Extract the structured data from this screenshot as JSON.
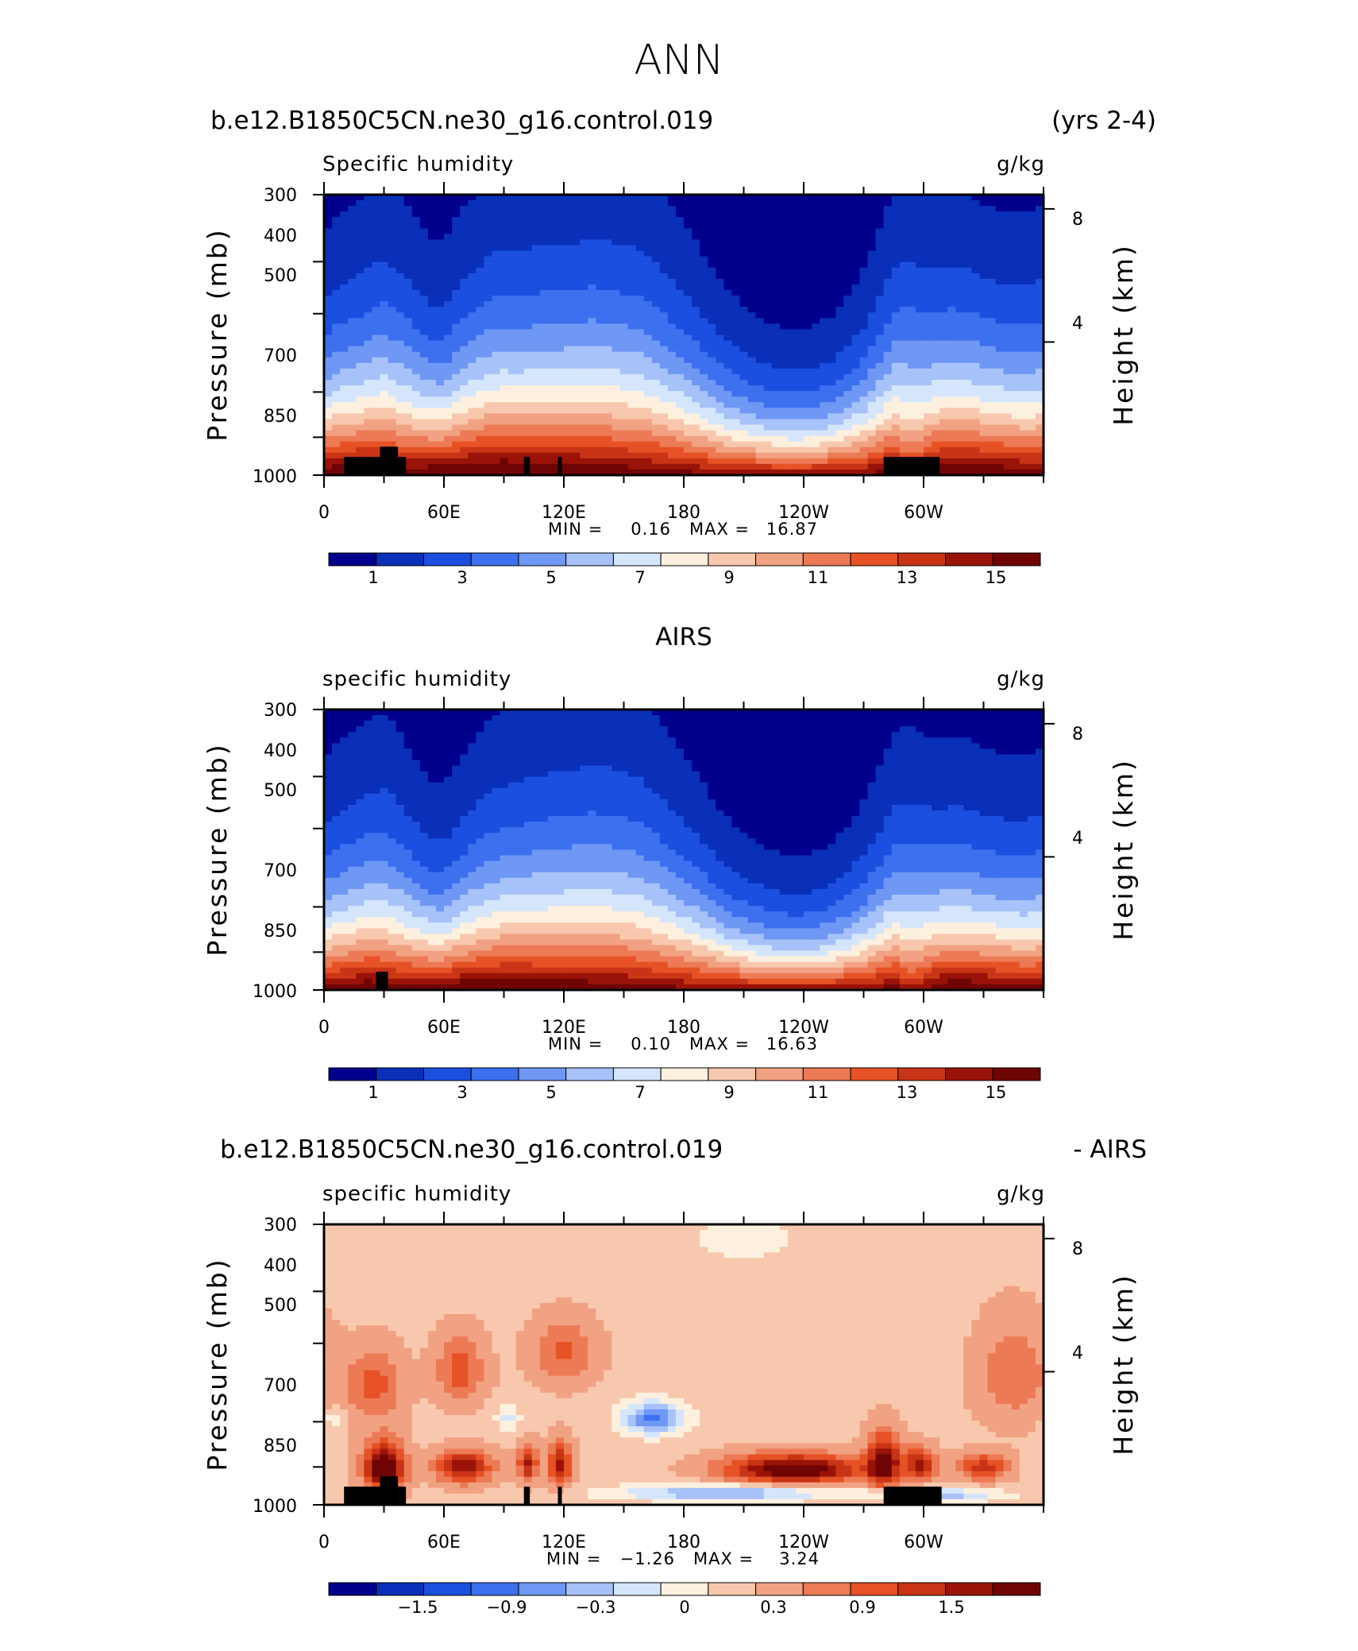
{
  "page_title": "ANN",
  "chart_data": [
    {
      "type": "heatmap",
      "header_left": "b.e12.B1850C5CN.ne30_g16.control.019",
      "header_right": "(yrs 2-4)",
      "variable": "Specific humidity",
      "units": "g/kg",
      "ylabel": "Pressure (mb)",
      "ylabel_right": "Height (km)",
      "y_ticks": [
        "300",
        "400",
        "500",
        "700",
        "850",
        "1000"
      ],
      "y_right_ticks": [
        "8",
        "4"
      ],
      "x_ticks": [
        "0",
        "60E",
        "120E",
        "180",
        "120W",
        "60W"
      ],
      "min_label": "MIN =",
      "min_value": "0.16",
      "max_label": "MAX =",
      "max_value": "16.87",
      "colorbar_labels": [
        "1",
        "3",
        "5",
        "7",
        "9",
        "11",
        "13",
        "15"
      ],
      "colorbar_colors": [
        "#00008c",
        "#0a2fb8",
        "#1b4fe0",
        "#3d70ee",
        "#6f97f4",
        "#a7c2f8",
        "#d5e6fc",
        "#fdf0de",
        "#f8c8ae",
        "#f1a283",
        "#ec7a55",
        "#e65225",
        "#c83415",
        "#991308",
        "#6e0404"
      ],
      "colorbar_range": [
        0,
        16
      ],
      "field": {
        "profile": [
          0.66,
          0.72,
          0.76,
          0.8,
          0.86,
          0.83,
          0.73,
          0.62,
          0.6,
          0.72,
          0.78,
          0.88,
          0.9,
          0.9,
          0.93,
          0.94,
          0.96,
          0.96,
          1.0,
          0.98,
          0.96,
          0.95,
          0.88,
          0.8,
          0.72,
          0.62,
          0.52,
          0.43,
          0.38,
          0.33,
          0.3,
          0.28,
          0.28,
          0.3,
          0.34,
          0.42,
          0.52,
          0.68,
          0.84,
          0.95,
          0.86,
          0.8,
          0.82,
          0.8,
          0.76,
          0.74,
          0.74,
          0.75,
          0.77
        ],
        "surface": [
          16,
          16.5,
          16.5,
          16.8,
          16.5,
          15.8,
          16,
          16.4,
          16.6,
          16.8,
          16.9,
          16.8,
          16.9,
          16.8,
          16.6,
          16.5,
          16.4,
          16.4,
          16.2,
          16.1,
          16,
          15.8,
          15.7,
          15.5,
          15.3,
          15.2,
          15,
          14.9,
          14.8,
          14.8,
          14.7,
          14.7,
          14.7,
          14.8,
          14.9,
          15,
          15.1,
          15.3,
          15.8,
          14,
          15,
          16.5,
          16.7,
          16.7,
          16.5,
          16.3,
          16,
          15.8,
          15.9
        ],
        "terrain": [
          {
            "lon": [
              10,
              28
            ],
            "p": 925
          },
          {
            "lon": [
              28,
              37
            ],
            "p": 885
          },
          {
            "lon": [
              37,
              41
            ],
            "p": 925
          },
          {
            "lon": [
              100,
              103
            ],
            "p": 925
          },
          {
            "lon": [
              117,
              119
            ],
            "p": 925
          },
          {
            "lon": [
              280,
              308
            ],
            "p": 925
          }
        ]
      }
    },
    {
      "type": "heatmap",
      "header_center": "AIRS",
      "variable": "specific humidity",
      "units": "g/kg",
      "ylabel": "Pressure (mb)",
      "ylabel_right": "Height (km)",
      "y_ticks": [
        "300",
        "400",
        "500",
        "700",
        "850",
        "1000"
      ],
      "y_right_ticks": [
        "8",
        "4"
      ],
      "x_ticks": [
        "0",
        "60E",
        "120E",
        "180",
        "120W",
        "60W"
      ],
      "min_label": "MIN =",
      "min_value": "0.10",
      "max_label": "MAX =",
      "max_value": "16.63",
      "colorbar_labels": [
        "1",
        "3",
        "5",
        "7",
        "9",
        "11",
        "13",
        "15"
      ],
      "colorbar_colors": [
        "#00008c",
        "#0a2fb8",
        "#1b4fe0",
        "#3d70ee",
        "#6f97f4",
        "#a7c2f8",
        "#d5e6fc",
        "#fdf0de",
        "#f8c8ae",
        "#f1a283",
        "#ec7a55",
        "#e65225",
        "#c83415",
        "#991308",
        "#6e0404"
      ],
      "colorbar_range": [
        0,
        16
      ],
      "field": {
        "profile": [
          0.62,
          0.68,
          0.72,
          0.76,
          0.8,
          0.74,
          0.62,
          0.52,
          0.5,
          0.6,
          0.68,
          0.76,
          0.8,
          0.82,
          0.86,
          0.88,
          0.9,
          0.91,
          0.93,
          0.92,
          0.9,
          0.88,
          0.8,
          0.72,
          0.64,
          0.55,
          0.46,
          0.38,
          0.33,
          0.28,
          0.25,
          0.23,
          0.23,
          0.25,
          0.29,
          0.36,
          0.45,
          0.58,
          0.72,
          0.8,
          0.74,
          0.68,
          0.7,
          0.68,
          0.65,
          0.63,
          0.63,
          0.64,
          0.66
        ],
        "surface": [
          15.5,
          15.8,
          16,
          16.2,
          15.9,
          15.4,
          15.7,
          16,
          16.2,
          16.4,
          16.5,
          16.4,
          16.5,
          16.4,
          16.2,
          16.1,
          16,
          16,
          15.9,
          15.8,
          15.7,
          15.6,
          15.5,
          15.3,
          15.2,
          15.1,
          14.9,
          14.8,
          14.7,
          14.7,
          14.6,
          14.6,
          14.6,
          14.7,
          14.8,
          14.9,
          15,
          15.1,
          15.5,
          14,
          14.8,
          16.1,
          16.3,
          16.3,
          16.2,
          16,
          15.8,
          15.6,
          15.7
        ],
        "terrain": [
          {
            "lon": [
              26,
              32
            ],
            "p": 925
          }
        ]
      }
    },
    {
      "type": "heatmap",
      "header_left": "b.e12.B1850C5CN.ne30_g16.control.019",
      "header_right": "- AIRS",
      "variable": "specific humidity",
      "units": "g/kg",
      "ylabel": "Pressure (mb)",
      "ylabel_right": "Height (km)",
      "y_ticks": [
        "300",
        "400",
        "500",
        "700",
        "850",
        "1000"
      ],
      "y_right_ticks": [
        "8",
        "4"
      ],
      "x_ticks": [
        "0",
        "60E",
        "120E",
        "180",
        "120W",
        "60W"
      ],
      "min_label": "MIN =",
      "min_value": "−1.26",
      "max_label": "MAX =",
      "max_value": "3.24",
      "colorbar_labels": [
        "−1.5",
        "−0.9",
        "−0.3",
        "0",
        "0.3",
        "0.9",
        "1.5"
      ],
      "colorbar_colors": [
        "#00008c",
        "#0a2fb8",
        "#1b4fe0",
        "#3d70ee",
        "#6f97f4",
        "#a7c2f8",
        "#d5e6fc",
        "#fdf0de",
        "#f8c8ae",
        "#f1a283",
        "#ec7a55",
        "#e65225",
        "#c83415",
        "#991308",
        "#6e0404"
      ],
      "colorbar_range": [
        -2.1,
        2.1
      ],
      "field": {
        "anomaly": true,
        "base": 0.35,
        "blobs": [
          {
            "lon": 25,
            "p": 600,
            "dlon": 14,
            "dp": 90,
            "amp": 0.75
          },
          {
            "lon": 68,
            "p": 560,
            "dlon": 12,
            "dp": 80,
            "amp": 0.8
          },
          {
            "lon": 120,
            "p": 520,
            "dlon": 16,
            "dp": 70,
            "amp": 0.7
          },
          {
            "lon": 30,
            "p": 850,
            "dlon": 10,
            "dp": 90,
            "amp": 1.9
          },
          {
            "lon": 70,
            "p": 850,
            "dlon": 14,
            "dp": 60,
            "amp": 1.4
          },
          {
            "lon": 102,
            "p": 840,
            "dlon": 5,
            "dp": 70,
            "amp": 1.2
          },
          {
            "lon": 118,
            "p": 840,
            "dlon": 6,
            "dp": 80,
            "amp": 1.3
          },
          {
            "lon": 235,
            "p": 860,
            "dlon": 35,
            "dp": 55,
            "amp": 1.8
          },
          {
            "lon": 280,
            "p": 830,
            "dlon": 8,
            "dp": 100,
            "amp": 1.6
          },
          {
            "lon": 298,
            "p": 840,
            "dlon": 8,
            "dp": 60,
            "amp": 1.2
          },
          {
            "lon": 330,
            "p": 850,
            "dlon": 12,
            "dp": 50,
            "amp": 1.1
          },
          {
            "lon": 345,
            "p": 570,
            "dlon": 18,
            "dp": 120,
            "amp": 0.6
          },
          {
            "lon": 165,
            "p": 690,
            "dlon": 16,
            "dp": 50,
            "amp": -1.4
          },
          {
            "lon": 200,
            "p": 950,
            "dlon": 55,
            "dp": 35,
            "amp": -1.1
          },
          {
            "lon": 305,
            "p": 960,
            "dlon": 35,
            "dp": 30,
            "amp": -0.9
          },
          {
            "lon": 92,
            "p": 690,
            "dlon": 6,
            "dp": 40,
            "amp": -0.6
          },
          {
            "lon": 5,
            "p": 690,
            "dlon": 5,
            "dp": 30,
            "amp": -0.5
          },
          {
            "lon": 210,
            "p": 320,
            "dlon": 40,
            "dp": 40,
            "amp": -0.3
          }
        ],
        "terrain": [
          {
            "lon": [
              10,
              28
            ],
            "p": 925
          },
          {
            "lon": [
              28,
              37
            ],
            "p": 885
          },
          {
            "lon": [
              37,
              41
            ],
            "p": 925
          },
          {
            "lon": [
              100,
              103
            ],
            "p": 925
          },
          {
            "lon": [
              117,
              119
            ],
            "p": 925
          },
          {
            "lon": [
              280,
              309
            ],
            "p": 925
          }
        ]
      }
    }
  ]
}
